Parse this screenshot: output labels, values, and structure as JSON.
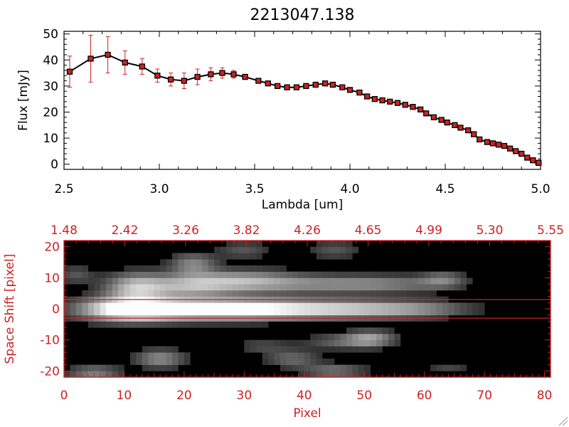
{
  "chart_data": [
    {
      "type": "line",
      "title": "2213047.138",
      "xlabel": "Lambda [um]",
      "ylabel": "Flux [mJy]",
      "xlim": [
        2.5,
        5.0
      ],
      "ylim": [
        -2,
        51
      ],
      "xticks": [
        "2.5",
        "3.0",
        "3.5",
        "4.0",
        "4.5",
        "5.0"
      ],
      "yticks": [
        "0",
        "10",
        "20",
        "30",
        "40",
        "50"
      ],
      "series": [
        {
          "x": [
            2.53,
            2.64,
            2.73,
            2.82,
            2.91,
            2.99,
            3.06,
            3.13,
            3.2,
            3.27,
            3.33,
            3.39,
            3.45,
            3.52,
            3.57,
            3.62,
            3.67,
            3.72,
            3.77,
            3.82,
            3.87,
            3.91,
            3.96,
            4.0,
            4.05,
            4.09,
            4.13,
            4.17,
            4.21,
            4.25,
            4.29,
            4.33,
            4.37,
            4.4,
            4.44,
            4.48,
            4.51,
            4.55,
            4.58,
            4.62,
            4.65,
            4.68,
            4.72,
            4.75,
            4.78,
            4.81,
            4.84,
            4.87,
            4.9,
            4.93,
            4.96,
            4.99
          ],
          "y": [
            35.5,
            40.5,
            42,
            39,
            37.5,
            34,
            32.5,
            32,
            33.5,
            34.5,
            35,
            34.5,
            33.5,
            32,
            31,
            30,
            29.5,
            29.5,
            30,
            30.5,
            31,
            30.5,
            29.5,
            28.5,
            27.5,
            26,
            25,
            24.5,
            24,
            23.5,
            22.8,
            22,
            21,
            19.5,
            18,
            17,
            16,
            15,
            14,
            13,
            11.5,
            9.5,
            8.5,
            8,
            7.5,
            7,
            6,
            5,
            4,
            2.5,
            1.5,
            0.5
          ],
          "yerr": [
            6,
            9,
            7,
            4.5,
            3,
            2.5,
            2.5,
            3,
            3,
            2.5,
            2,
            1.5,
            1,
            0.5,
            0.5,
            0.5,
            0.5,
            0.5,
            0.5,
            0.5,
            0.5,
            0.5,
            0.5,
            0.5,
            0.5,
            0.5,
            0.5,
            0.5,
            0.5,
            0.5,
            0.5,
            0.5,
            0.5,
            0.5,
            0.5,
            0.5,
            0.5,
            0.5,
            0.5,
            0.5,
            0.5,
            0.5,
            0.5,
            0.5,
            0.5,
            0.5,
            0.5,
            0.5,
            0.5,
            0.5,
            0.5,
            0.5
          ]
        }
      ],
      "colors": {
        "line": "#000000",
        "marker": "#cc2222",
        "errorbar": "#cc2222"
      },
      "grid": false
    },
    {
      "type": "heatmap",
      "xlabel": "Pixel",
      "ylabel": "Space Shift [pixel]",
      "xlim": [
        0,
        81
      ],
      "ylim": [
        -22,
        22
      ],
      "xticks": [
        "0",
        "10",
        "20",
        "30",
        "40",
        "50",
        "60",
        "70",
        "80"
      ],
      "yticks": [
        "-20",
        "-10",
        "0",
        "10",
        "20"
      ],
      "top_axis_ticks": [
        "1.48",
        "2.42",
        "3.26",
        "3.82",
        "4.26",
        "4.65",
        "4.99",
        "5.30",
        "5.55"
      ],
      "extraction_band": [
        -3,
        3
      ],
      "colormap": "grayscale",
      "blobs": [
        {
          "x": 11,
          "y": 0,
          "intensity": 1.0,
          "sx": 5.5,
          "sy": 2.6
        },
        {
          "x": 24,
          "y": 0,
          "intensity": 0.82,
          "sx": 10,
          "sy": 2.3
        },
        {
          "x": 38,
          "y": 0,
          "intensity": 0.6,
          "sx": 12,
          "sy": 2.1
        },
        {
          "x": 52,
          "y": 0,
          "intensity": 0.38,
          "sx": 8,
          "sy": 1.9
        },
        {
          "x": 61,
          "y": 0,
          "intensity": 0.18,
          "sx": 5,
          "sy": 1.6
        },
        {
          "x": 12,
          "y": 7,
          "intensity": 0.65,
          "sx": 3.5,
          "sy": 3
        },
        {
          "x": 21,
          "y": 7.5,
          "intensity": 0.55,
          "sx": 5,
          "sy": 2.6
        },
        {
          "x": 30,
          "y": 9,
          "intensity": 0.5,
          "sx": 6,
          "sy": 2.4
        },
        {
          "x": 43,
          "y": 8,
          "intensity": 0.38,
          "sx": 9,
          "sy": 2
        },
        {
          "x": 55,
          "y": 8,
          "intensity": 0.25,
          "sx": 7,
          "sy": 1.8
        },
        {
          "x": 63,
          "y": 9.5,
          "intensity": 0.33,
          "sx": 2.5,
          "sy": 1.8
        },
        {
          "x": 21.5,
          "y": 14.5,
          "intensity": 0.42,
          "sx": 2.6,
          "sy": 2.4
        },
        {
          "x": 30,
          "y": 19,
          "intensity": 0.22,
          "sx": 3,
          "sy": 2
        },
        {
          "x": 45,
          "y": 19,
          "intensity": 0.22,
          "sx": 3,
          "sy": 2
        },
        {
          "x": 2,
          "y": 11,
          "intensity": 0.22,
          "sx": 2,
          "sy": 2
        },
        {
          "x": 51,
          "y": -9.5,
          "intensity": 0.5,
          "sx": 2.8,
          "sy": 1.8
        },
        {
          "x": 46,
          "y": -10.5,
          "intensity": 0.26,
          "sx": 4,
          "sy": 1.6
        },
        {
          "x": 16,
          "y": -16,
          "intensity": 0.45,
          "sx": 2.8,
          "sy": 2
        },
        {
          "x": 38,
          "y": -16,
          "intensity": 0.3,
          "sx": 3,
          "sy": 2
        },
        {
          "x": 5,
          "y": -20.5,
          "intensity": 0.4,
          "sx": 3,
          "sy": 1.5
        },
        {
          "x": 45,
          "y": -20,
          "intensity": 0.35,
          "sx": 3.5,
          "sy": 1.6
        },
        {
          "x": 33,
          "y": -12,
          "intensity": 0.18,
          "sx": 3,
          "sy": 1.5
        },
        {
          "x": 64,
          "y": -19,
          "intensity": 0.16,
          "sx": 2.5,
          "sy": 1.5
        }
      ],
      "colors": {
        "axis": "#cc2222",
        "band": "#cc2222"
      }
    }
  ]
}
